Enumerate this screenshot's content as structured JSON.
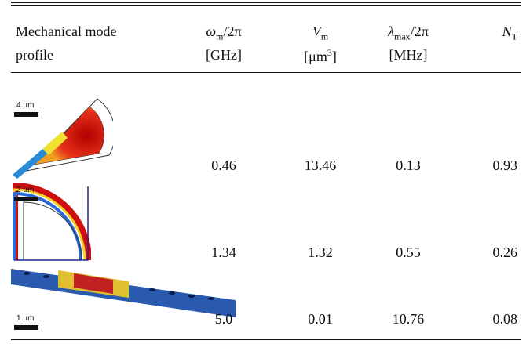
{
  "header": {
    "columns": [
      {
        "line1": "Mechanical mode",
        "line2": "profile"
      },
      {
        "symbol": "ω",
        "sub": "m",
        "suffix": "/2π",
        "unit": "[GHz]"
      },
      {
        "symbol": "V",
        "sub": "m",
        "unit": "[μm",
        "unit_sup": "3",
        "unit_close": "]"
      },
      {
        "symbol": "λ",
        "sub": "max",
        "suffix": "/2π",
        "unit": "[MHz]"
      },
      {
        "symbol": "N",
        "sub": "T"
      }
    ]
  },
  "table": {
    "rows": [
      {
        "scale": "4 µm",
        "cells": [
          "0.46",
          "13.46",
          "0.13",
          "0.93"
        ]
      },
      {
        "scale": "2 µm",
        "cells": [
          "1.34",
          "1.32",
          "0.55",
          "0.26"
        ]
      },
      {
        "scale": "1 µm",
        "cells": [
          "5.0",
          "0.01",
          "10.76",
          "0.08"
        ]
      }
    ]
  }
}
